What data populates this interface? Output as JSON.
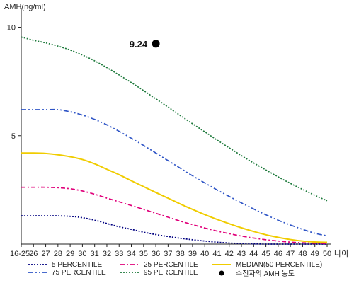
{
  "chart_data": {
    "type": "line",
    "ylabel": "AMH(ng/ml)",
    "xlabel": "나이",
    "x": [
      "16-25",
      "26",
      "27",
      "28",
      "29",
      "30",
      "31",
      "32",
      "33",
      "34",
      "35",
      "36",
      "37",
      "38",
      "39",
      "40",
      "41",
      "42",
      "43",
      "44",
      "45",
      "46",
      "47",
      "48",
      "49",
      "50"
    ],
    "y_ticks": [
      5,
      10
    ],
    "ylim": [
      0,
      10.8
    ],
    "grid": false,
    "series": [
      {
        "name": "5 PERCENTILE",
        "color": "#000080",
        "dash": "2,2",
        "values": [
          1.3,
          1.3,
          1.3,
          1.3,
          1.28,
          1.22,
          1.1,
          0.95,
          0.8,
          0.68,
          0.55,
          0.44,
          0.35,
          0.27,
          0.2,
          0.14,
          0.09,
          0.05,
          0.03,
          0.01,
          0.0,
          0.0,
          0.0,
          0.0,
          0.0,
          0.0
        ]
      },
      {
        "name": "25 PERCENTILE",
        "color": "#e0007a",
        "dash": "6,3,2,3",
        "values": [
          2.62,
          2.62,
          2.62,
          2.6,
          2.55,
          2.45,
          2.3,
          2.12,
          1.95,
          1.78,
          1.6,
          1.42,
          1.24,
          1.06,
          0.9,
          0.74,
          0.6,
          0.48,
          0.37,
          0.28,
          0.2,
          0.14,
          0.09,
          0.06,
          0.04,
          0.03
        ]
      },
      {
        "name": "MEDIAN(50 PERCENTILE)",
        "color": "#f0cc00",
        "dash": "",
        "values": [
          4.2,
          4.2,
          4.18,
          4.12,
          4.03,
          3.9,
          3.7,
          3.45,
          3.2,
          2.92,
          2.65,
          2.38,
          2.12,
          1.85,
          1.6,
          1.36,
          1.14,
          0.94,
          0.75,
          0.58,
          0.43,
          0.31,
          0.21,
          0.14,
          0.1,
          0.08
        ]
      },
      {
        "name": "75 PERCENTILE",
        "color": "#2f55c6",
        "dash": "7,3,2,3,2,3",
        "values": [
          6.2,
          6.2,
          6.2,
          6.2,
          6.1,
          5.95,
          5.75,
          5.5,
          5.2,
          4.88,
          4.55,
          4.2,
          3.85,
          3.5,
          3.15,
          2.82,
          2.5,
          2.2,
          1.9,
          1.62,
          1.35,
          1.1,
          0.88,
          0.68,
          0.5,
          0.38
        ]
      },
      {
        "name": "95 PERCENTILE",
        "color": "#1e7a3c",
        "dash": "2,2",
        "values": [
          9.55,
          9.4,
          9.28,
          9.13,
          8.95,
          8.72,
          8.45,
          8.14,
          7.8,
          7.45,
          7.08,
          6.7,
          6.32,
          5.93,
          5.55,
          5.18,
          4.8,
          4.44,
          4.08,
          3.74,
          3.42,
          3.1,
          2.8,
          2.52,
          2.25,
          2.0
        ]
      }
    ],
    "annotation": {
      "x": "36",
      "y": 9.24,
      "label": "9.24",
      "legend": "수진자의 AMH 농도",
      "color": "#000000"
    }
  }
}
